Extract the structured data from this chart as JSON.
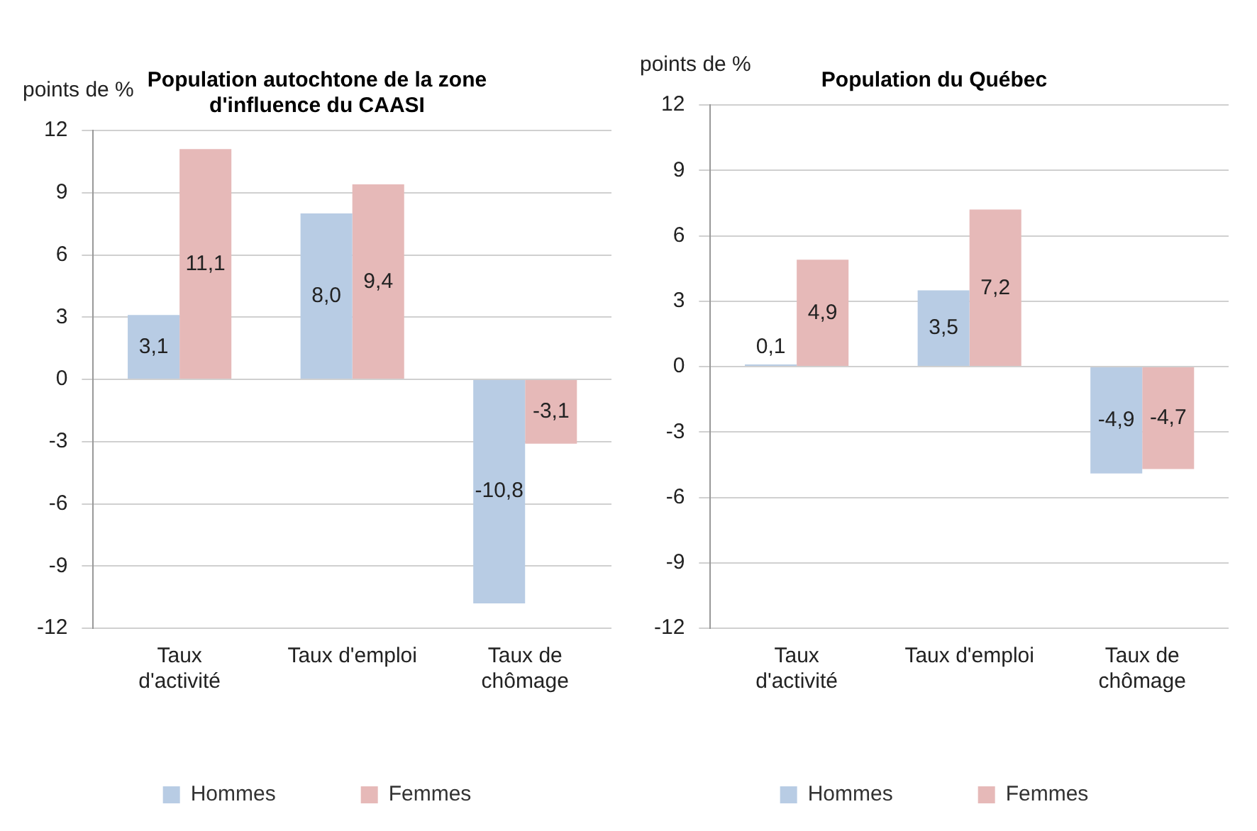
{
  "chart_data": [
    {
      "type": "bar",
      "title": "Population autochtone de la zone\nd'influence du CAASI",
      "ylabel": "points de %",
      "categories": [
        "Taux d'activité",
        "Taux d'emploi",
        "Taux de chômage"
      ],
      "series": [
        {
          "name": "Hommes",
          "color": "#b8cce4",
          "values": [
            3.1,
            8.0,
            -10.8
          ],
          "value_labels": [
            "3,1",
            "8,0",
            "-10,8"
          ]
        },
        {
          "name": "Femmes",
          "color": "#e6b9b8",
          "values": [
            11.1,
            9.4,
            -3.1
          ],
          "value_labels": [
            "11,1",
            "9,4",
            "-3,1"
          ]
        }
      ],
      "ylim": [
        -12,
        12
      ],
      "yticks": [
        -12,
        -9,
        -6,
        -3,
        0,
        3,
        6,
        9,
        12
      ],
      "grid": "y",
      "legend": "bottom"
    },
    {
      "type": "bar",
      "title": "Population du Québec",
      "ylabel": "points de %",
      "categories": [
        "Taux d'activité",
        "Taux d'emploi",
        "Taux de chômage"
      ],
      "series": [
        {
          "name": "Hommes",
          "color": "#b8cce4",
          "values": [
            0.1,
            3.5,
            -4.9
          ],
          "value_labels": [
            "0,1",
            "3,5",
            "-4,9"
          ]
        },
        {
          "name": "Femmes",
          "color": "#e6b9b8",
          "values": [
            4.9,
            7.2,
            -4.7
          ],
          "value_labels": [
            "4,9",
            "7,2",
            "-4,7"
          ]
        }
      ],
      "ylim": [
        -12,
        12
      ],
      "yticks": [
        -12,
        -9,
        -6,
        -3,
        0,
        3,
        6,
        9,
        12
      ],
      "grid": "y",
      "legend": "bottom"
    }
  ]
}
